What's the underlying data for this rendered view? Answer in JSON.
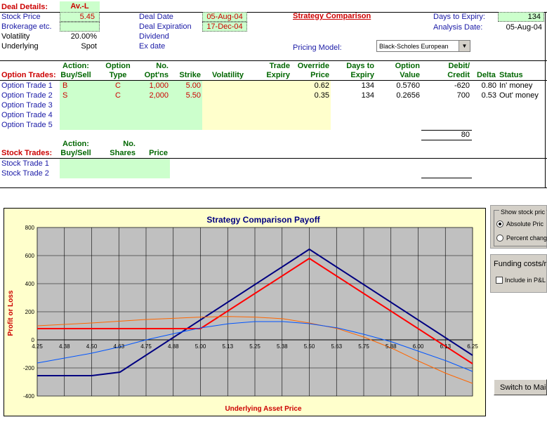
{
  "deal": {
    "header": "Deal Details:",
    "name": "Av.-L",
    "stock_price_label": "Stock Price",
    "stock_price": "5.45",
    "brokerage_label": "Brokerage etc.",
    "volatility_label": "Volatility",
    "volatility": "20.00%",
    "underlying_label": "Underlying",
    "underlying": "Spot",
    "deal_date_label": "Deal Date",
    "deal_date": "05-Aug-04",
    "deal_expiration_label": "Deal Expiration",
    "deal_expiration": "17-Dec-04",
    "dividend_label": "Dividend",
    "ex_date_label": "Ex date",
    "strategy_link": "Strategy Comparison",
    "days_to_expiry_label": "Days to Expiry:",
    "days_to_expiry": "134",
    "analysis_date_label": "Analysis Date:",
    "analysis_date": "05-Aug-04",
    "pricing_model_label": "Pricing Model:",
    "pricing_model": "Black-Scholes European"
  },
  "option_table": {
    "title": "Option Trades:",
    "headers": {
      "action_1": "Action:",
      "action_2": "Buy/Sell",
      "type_1": "Option",
      "type_2": "Type",
      "no_1": "No.",
      "no_2": "Opt'ns",
      "strike": "Strike",
      "volatility": "Volatility",
      "expiry_1": "Trade",
      "expiry_2": "Expiry",
      "override_1": "Override",
      "override_2": "Price",
      "days_1": "Days to",
      "days_2": "Expiry",
      "value_1": "Option",
      "value_2": "Value",
      "debit_1": "Debit/",
      "debit_2": "Credit",
      "delta": "Delta",
      "status": "Status"
    },
    "rows": [
      {
        "label": "Option Trade 1",
        "action": "B",
        "type": "C",
        "no": "1,000",
        "strike": "5.00",
        "override": "0.62",
        "days": "134",
        "value": "0.5760",
        "debit": "-620",
        "delta": "0.80",
        "status": "In' money"
      },
      {
        "label": "Option Trade 2",
        "action": "S",
        "type": "C",
        "no": "2,000",
        "strike": "5.50",
        "override": "0.35",
        "days": "134",
        "value": "0.2656",
        "debit": "700",
        "delta": "0.53",
        "status": "Out' money"
      },
      {
        "label": "Option Trade 3"
      },
      {
        "label": "Option Trade 4"
      },
      {
        "label": "Option Trade 5"
      }
    ],
    "total": "80"
  },
  "stock_table": {
    "title": "Stock Trades:",
    "action_1": "Action:",
    "action_2": "Buy/Sell",
    "no_1": "No.",
    "no_2": "Shares",
    "price": "Price",
    "rows": [
      {
        "label": "Stock Trade 1"
      },
      {
        "label": "Stock Trade 2"
      }
    ]
  },
  "right_panel": {
    "show_stock_label": "Show stock pric",
    "absolute_label": "Absolute Pric",
    "percent_label": "Percent chang",
    "funding_label": "Funding costs/r",
    "include_label": "Include in P&L",
    "switch_label": "Switch to Mai"
  },
  "chart_data": {
    "type": "line",
    "title": "Strategy Comparison Payoff",
    "xlabel": "Underlying Asset Price",
    "ylabel": "Profit or Loss",
    "xlim": [
      4.25,
      6.25
    ],
    "ylim": [
      -400,
      800
    ],
    "x_ticks": [
      "4.25",
      "4.38",
      "4.50",
      "4.63",
      "4.75",
      "4.88",
      "5.00",
      "5.13",
      "5.25",
      "5.38",
      "5.50",
      "5.63",
      "5.75",
      "5.88",
      "6.00",
      "6.13",
      "6.25"
    ],
    "y_ticks": [
      -400,
      -200,
      0,
      200,
      400,
      600,
      800
    ],
    "grid": true,
    "background": "#c0c0c0",
    "series": [
      {
        "color": "#000080",
        "x": [
          4.25,
          4.5,
          4.63,
          5.5,
          6.25
        ],
        "y": [
          -255,
          -255,
          -230,
          645,
          -110
        ]
      },
      {
        "color": "#ff0000",
        "x": [
          4.25,
          5.0,
          5.5,
          6.25
        ],
        "y": [
          80,
          80,
          580,
          -170
        ]
      },
      {
        "color": "#ff6600",
        "x": [
          4.25,
          4.5,
          4.75,
          5.0,
          5.13,
          5.25,
          5.38,
          5.5,
          5.63,
          5.75,
          5.88,
          6.0,
          6.13,
          6.25
        ],
        "y": [
          100,
          120,
          145,
          162,
          166,
          162,
          150,
          120,
          80,
          20,
          -60,
          -150,
          -240,
          -310
        ]
      },
      {
        "color": "#0055ff",
        "x": [
          4.25,
          4.5,
          4.63,
          4.75,
          4.88,
          5.0,
          5.13,
          5.25,
          5.38,
          5.5,
          5.63,
          5.75,
          5.88,
          6.0,
          6.13,
          6.25
        ],
        "y": [
          -165,
          -95,
          -50,
          0,
          45,
          85,
          115,
          130,
          130,
          115,
          85,
          40,
          -15,
          -80,
          -150,
          -225
        ]
      }
    ]
  }
}
